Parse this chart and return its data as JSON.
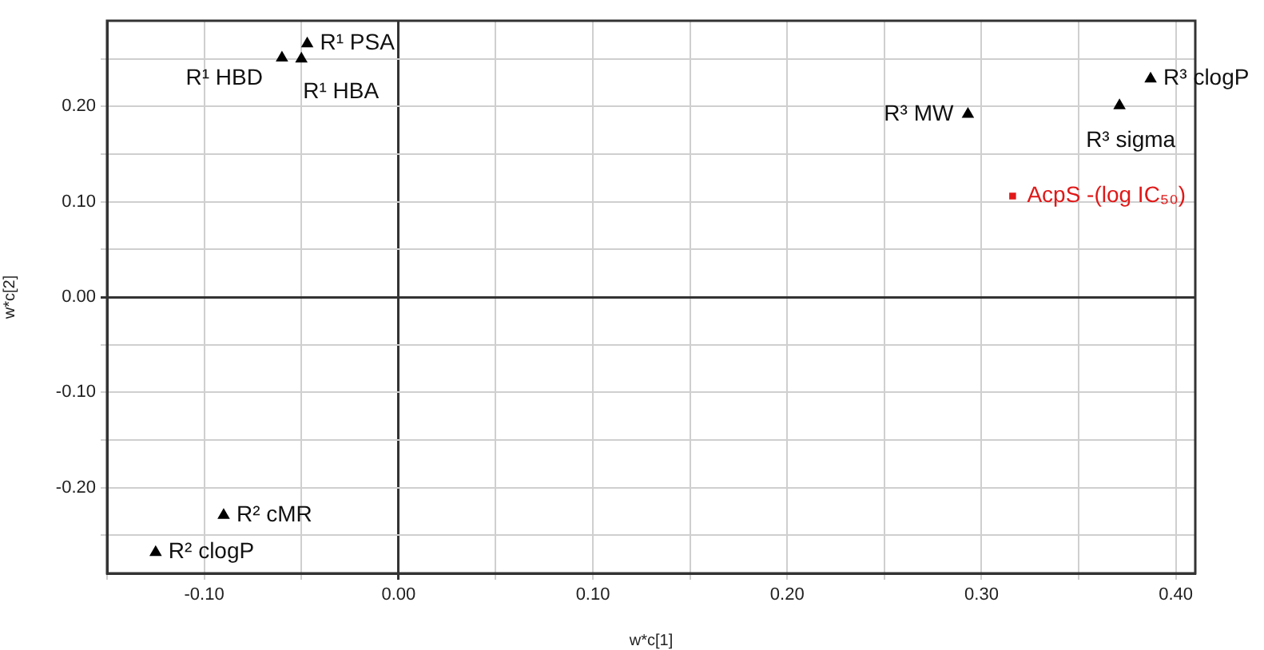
{
  "chart_data": {
    "type": "scatter",
    "xlabel": "w*c[1]",
    "ylabel": "w*c[2]",
    "xlim": [
      -0.15,
      0.41
    ],
    "ylim": [
      -0.29,
      0.29
    ],
    "xticks": [
      {
        "value": -0.15,
        "label": null
      },
      {
        "value": -0.1,
        "label": "-0.10"
      },
      {
        "value": -0.05,
        "label": null
      },
      {
        "value": 0,
        "label": "0.00"
      },
      {
        "value": 0.05,
        "label": null
      },
      {
        "value": 0.1,
        "label": "0.10"
      },
      {
        "value": 0.15,
        "label": null
      },
      {
        "value": 0.2,
        "label": "0.20"
      },
      {
        "value": 0.25,
        "label": null
      },
      {
        "value": 0.3,
        "label": "0.30"
      },
      {
        "value": 0.35,
        "label": null
      },
      {
        "value": 0.4,
        "label": "0.40"
      }
    ],
    "yticks": [
      {
        "value": -0.25,
        "label": null
      },
      {
        "value": -0.2,
        "label": "-0.20"
      },
      {
        "value": -0.15,
        "label": null
      },
      {
        "value": -0.1,
        "label": "-0.10"
      },
      {
        "value": -0.05,
        "label": null
      },
      {
        "value": 0,
        "label": "0.00"
      },
      {
        "value": 0.05,
        "label": null
      },
      {
        "value": 0.1,
        "label": "0.10"
      },
      {
        "value": 0.15,
        "label": null
      },
      {
        "value": 0.2,
        "label": "0.20"
      },
      {
        "value": 0.25,
        "label": null
      }
    ],
    "grid": true,
    "legend": false,
    "series": [
      {
        "color": "#000000",
        "marker": "triangle",
        "x": [
          -0.047,
          -0.06,
          -0.05,
          0.387,
          0.293,
          0.371,
          -0.09,
          -0.125
        ],
        "values": [
          0.266,
          0.251,
          0.25,
          0.229,
          0.192,
          0.201,
          -0.229,
          -0.268
        ]
      },
      {
        "name": "AcpS -(log IC₅₀)",
        "color": "#e01818",
        "marker": "square",
        "x": [
          0.316
        ],
        "values": [
          0.106
        ]
      }
    ],
    "annotations": [
      {
        "text": "R¹ PSA",
        "x": -0.047,
        "y": 0.266
      },
      {
        "text": "R¹ HBD",
        "x": -0.06,
        "y": 0.251
      },
      {
        "text": "R¹ HBA",
        "x": -0.05,
        "y": 0.25
      },
      {
        "text": "R³ clogP",
        "x": 0.387,
        "y": 0.229
      },
      {
        "text": "R³ MW",
        "x": 0.293,
        "y": 0.192
      },
      {
        "text": "R³ sigma",
        "x": 0.371,
        "y": 0.201
      },
      {
        "text": "R² cMR",
        "x": -0.09,
        "y": -0.229
      },
      {
        "text": "R² clogP",
        "x": -0.125,
        "y": -0.268
      }
    ]
  }
}
